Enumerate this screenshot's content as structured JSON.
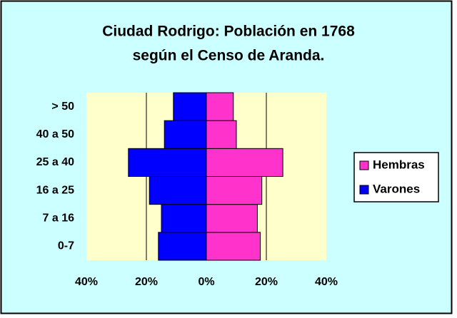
{
  "chart_data": {
    "type": "bar",
    "orientation": "horizontal",
    "stacked": true,
    "title": [
      "Ciudad Rodrigo: Población en 1768",
      "según el Censo de Aranda."
    ],
    "categories": [
      "0-7",
      "7 a 16",
      "16 a 25",
      "25 a 40",
      "40 a 50",
      "> 50"
    ],
    "series": [
      {
        "name": "Hembras",
        "color": "#ff33cc",
        "values": [
          18,
          17,
          18.5,
          25.5,
          10,
          9
        ]
      },
      {
        "name": "Varones",
        "color": "#0000ff",
        "values": [
          -16,
          -15,
          -19,
          -26,
          -14,
          -11
        ]
      }
    ],
    "xlim": [
      -40,
      40
    ],
    "xticks": [
      {
        "value": -40,
        "label": "40%"
      },
      {
        "value": -20,
        "label": "20%"
      },
      {
        "value": 0,
        "label": "0%"
      },
      {
        "value": 20,
        "label": "20%"
      },
      {
        "value": 40,
        "label": "40%"
      }
    ],
    "grid": true,
    "legend": "right"
  }
}
